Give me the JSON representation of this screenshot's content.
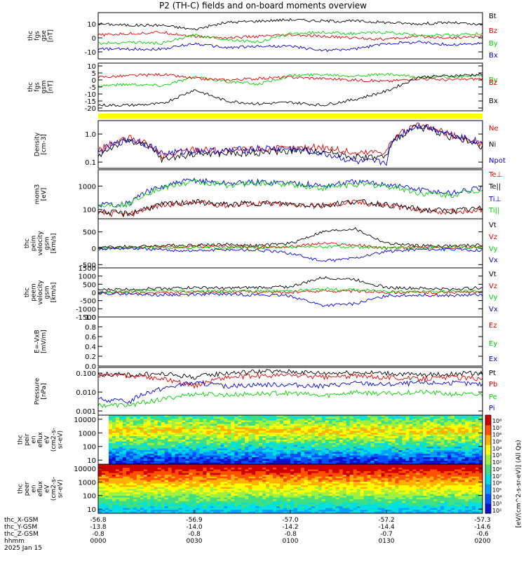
{
  "page": {
    "title": "P2 (TH-C) fields and on-board moments overview"
  },
  "colors": {
    "black": "#000000",
    "red": "#e00000",
    "green": "#00d000",
    "blue": "#0000e0",
    "yellow": "#ffff00"
  },
  "chart_data": [
    {
      "type": "line",
      "id": "fgs-gse",
      "ylabel_lines": [
        "thc",
        "fgs",
        "gse",
        "[nT]"
      ],
      "yticks": [
        "10",
        "0",
        "-10"
      ],
      "ytick_values": [
        10,
        0,
        -10
      ],
      "ylim": [
        -15,
        18
      ],
      "x": [
        "0000",
        "0010",
        "0020",
        "0030",
        "0040",
        "0050",
        "0100",
        "0110",
        "0120",
        "0130",
        "0140",
        "0150",
        "0200"
      ],
      "series": [
        {
          "name": "Bt",
          "color": "black",
          "values": [
            10,
            9,
            9,
            6,
            11,
            12,
            13,
            12,
            12,
            11,
            10,
            11,
            9
          ]
        },
        {
          "name": "Bz",
          "color": "red",
          "values": [
            2,
            3,
            4,
            1,
            0,
            1,
            2,
            1,
            0,
            -1,
            1,
            0,
            1
          ]
        },
        {
          "name": "By",
          "color": "green",
          "values": [
            -4,
            -3,
            -4,
            2,
            -1,
            -3,
            3,
            4,
            3,
            4,
            2,
            2,
            3
          ]
        },
        {
          "name": "Bx",
          "color": "blue",
          "values": [
            -8,
            -8,
            -8,
            -4,
            -7,
            -6,
            -6,
            -9,
            -8,
            -4,
            -3,
            -5,
            -4
          ]
        }
      ]
    },
    {
      "type": "line",
      "id": "fgs-gsm",
      "ylabel_lines": [
        "thc",
        "fgs",
        "gsm",
        "[nT]"
      ],
      "yticks": [
        "10",
        "5",
        "0",
        "-5",
        "-10",
        "-15",
        "-20"
      ],
      "ytick_values": [
        10,
        5,
        0,
        -5,
        -10,
        -15,
        -20
      ],
      "ylim": [
        -22,
        12
      ],
      "x": [
        "0000",
        "0010",
        "0020",
        "0030",
        "0040",
        "0050",
        "0100",
        "0110",
        "0120",
        "0130",
        "0140",
        "0150",
        "0200"
      ],
      "series": [
        {
          "name": "By",
          "color": "green",
          "values": [
            -4,
            -3,
            -4,
            2,
            -1,
            -3,
            3,
            4,
            3,
            4,
            2,
            2,
            3
          ]
        },
        {
          "name": "Bz",
          "color": "red",
          "values": [
            2,
            3,
            4,
            1,
            0,
            1,
            2,
            1,
            0,
            -1,
            1,
            0,
            1
          ]
        },
        {
          "name": "Bx",
          "color": "black",
          "values": [
            -18,
            -18,
            -17,
            -7,
            -15,
            -17,
            -16,
            -18,
            -14,
            -8,
            2,
            3,
            4
          ]
        }
      ]
    },
    {
      "type": "line",
      "id": "density",
      "ylabel_lines": [
        "Density",
        "[cm-3]"
      ],
      "yticks": [
        "1.0",
        "0.1"
      ],
      "ytick_values": [
        1.0,
        0.1
      ],
      "ylim": [
        0.06,
        3.0
      ],
      "yscale": "log",
      "x": [
        "0000",
        "0010",
        "0020",
        "0030",
        "0040",
        "0050",
        "0100",
        "0110",
        "0120",
        "0130",
        "0140",
        "0150",
        "0200"
      ],
      "series": [
        {
          "name": "Ne",
          "color": "red",
          "values": [
            0.25,
            0.7,
            0.15,
            0.3,
            0.25,
            0.3,
            0.3,
            0.35,
            0.2,
            0.25,
            2.0,
            0.9,
            0.4
          ]
        },
        {
          "name": "Ni",
          "color": "black",
          "values": [
            0.15,
            0.6,
            0.12,
            0.2,
            0.2,
            0.22,
            0.25,
            0.25,
            0.15,
            0.15,
            1.8,
            0.8,
            0.3
          ]
        },
        {
          "name": "Npot",
          "color": "blue",
          "values": [
            0.2,
            0.65,
            0.2,
            0.25,
            0.25,
            0.3,
            0.3,
            0.2,
            0.1,
            0.1,
            2.0,
            1.0,
            0.45
          ]
        }
      ]
    },
    {
      "type": "line",
      "id": "temperature",
      "ylabel_lines": [
        "mom3",
        "[eV]"
      ],
      "yticks": [
        "1000",
        "100"
      ],
      "ytick_values": [
        1000,
        100
      ],
      "ylim": [
        40,
        5000
      ],
      "yscale": "log",
      "x": [
        "0000",
        "0010",
        "0020",
        "0030",
        "0040",
        "0050",
        "0100",
        "0110",
        "0120",
        "0130",
        "0140",
        "0150",
        "0200"
      ],
      "series": [
        {
          "name": "Te⊥",
          "color": "red",
          "values": [
            70,
            60,
            150,
            200,
            150,
            180,
            160,
            140,
            200,
            150,
            90,
            80,
            100
          ]
        },
        {
          "name": "Te||",
          "color": "black",
          "values": [
            80,
            65,
            160,
            210,
            160,
            190,
            170,
            150,
            220,
            160,
            100,
            85,
            110
          ]
        },
        {
          "name": "Ti⊥",
          "color": "blue",
          "values": [
            160,
            180,
            900,
            1800,
            1300,
            1500,
            1400,
            1000,
            1500,
            1200,
            700,
            500,
            800
          ]
        },
        {
          "name": "Ti||",
          "color": "green",
          "values": [
            150,
            170,
            800,
            1500,
            1100,
            1300,
            1200,
            800,
            1200,
            1000,
            500,
            400,
            700
          ]
        }
      ]
    },
    {
      "type": "line",
      "id": "peim-velocity",
      "ylabel_lines": [
        "thc",
        "peim",
        "velocity",
        "gsm",
        "[km/s]"
      ],
      "yticks": [
        "500",
        "0",
        "-500"
      ],
      "ytick_values": [
        500,
        0,
        -500
      ],
      "ylim": [
        -600,
        900
      ],
      "x": [
        "0000",
        "0010",
        "0020",
        "0030",
        "0040",
        "0050",
        "0100",
        "0110",
        "0120",
        "0130",
        "0140",
        "0150",
        "0200"
      ],
      "series": [
        {
          "name": "Vt",
          "color": "black",
          "values": [
            30,
            50,
            80,
            100,
            120,
            80,
            150,
            500,
            600,
            150,
            80,
            70,
            100
          ]
        },
        {
          "name": "Vz",
          "color": "red",
          "values": [
            0,
            20,
            50,
            40,
            60,
            30,
            50,
            150,
            100,
            0,
            30,
            20,
            40
          ]
        },
        {
          "name": "Vy",
          "color": "green",
          "values": [
            -10,
            10,
            20,
            30,
            10,
            20,
            40,
            50,
            30,
            10,
            20,
            30,
            20
          ]
        },
        {
          "name": "Vx",
          "color": "blue",
          "values": [
            -20,
            0,
            -50,
            -80,
            -40,
            -60,
            -150,
            -400,
            -300,
            -100,
            -30,
            -40,
            -60
          ]
        }
      ]
    },
    {
      "type": "line",
      "id": "peem-velocity",
      "ylabel_lines": [
        "thc",
        "peem",
        "velocity",
        "gsm",
        "[km/s]"
      ],
      "yticks": [
        "1500",
        "1000",
        "500",
        "0",
        "-500",
        "-1000",
        "-1500"
      ],
      "ytick_values": [
        1500,
        1000,
        500,
        0,
        -500,
        -1000,
        -1500
      ],
      "ylim": [
        -1500,
        1500
      ],
      "x": [
        "0000",
        "0010",
        "0020",
        "0030",
        "0040",
        "0050",
        "0100",
        "0110",
        "0120",
        "0130",
        "0140",
        "0150",
        "0200"
      ],
      "series": [
        {
          "name": "Vt",
          "color": "black",
          "values": [
            150,
            200,
            250,
            300,
            250,
            300,
            350,
            900,
            800,
            300,
            250,
            200,
            300
          ]
        },
        {
          "name": "Vz",
          "color": "red",
          "values": [
            -20,
            0,
            -50,
            0,
            50,
            30,
            0,
            100,
            80,
            20,
            0,
            10,
            0
          ]
        },
        {
          "name": "Vy",
          "color": "green",
          "values": [
            20,
            50,
            100,
            80,
            60,
            80,
            100,
            200,
            150,
            80,
            50,
            60,
            80
          ]
        },
        {
          "name": "Vx",
          "color": "blue",
          "values": [
            -50,
            -100,
            -150,
            -120,
            -100,
            -150,
            -200,
            -800,
            -700,
            -200,
            -150,
            -200,
            -150
          ]
        }
      ]
    },
    {
      "type": "line",
      "id": "efield",
      "ylabel_lines": [
        "E=-VxB",
        "[mV/m]"
      ],
      "yticks": [
        "1.0",
        "0.8",
        "0.6",
        "0.4",
        "0.2",
        "0.0"
      ],
      "ytick_values": [
        1.0,
        0.8,
        0.6,
        0.4,
        0.2,
        0.0
      ],
      "ylim": [
        0.0,
        1.0
      ],
      "x": [],
      "series": [
        {
          "name": "Ez",
          "color": "red",
          "values": []
        },
        {
          "name": "Ey",
          "color": "green",
          "values": []
        },
        {
          "name": "Ex",
          "color": "blue",
          "values": []
        }
      ]
    },
    {
      "type": "line",
      "id": "pressure",
      "ylabel_lines": [
        "Pressure",
        "[nPa]"
      ],
      "yticks": [
        "0.100",
        "0.010",
        "0.001"
      ],
      "ytick_values": [
        0.1,
        0.01,
        0.001
      ],
      "ylim": [
        0.0006,
        0.2
      ],
      "yscale": "log",
      "x": [
        "0000",
        "0010",
        "0020",
        "0030",
        "0040",
        "0050",
        "0100",
        "0110",
        "0120",
        "0130",
        "0140",
        "0150",
        "0200"
      ],
      "series": [
        {
          "name": "Pt",
          "color": "black",
          "values": [
            0.09,
            0.08,
            0.09,
            0.06,
            0.1,
            0.12,
            0.12,
            0.1,
            0.11,
            0.1,
            0.08,
            0.09,
            0.1
          ]
        },
        {
          "name": "Pb",
          "color": "red",
          "values": [
            0.08,
            0.07,
            0.05,
            0.02,
            0.06,
            0.07,
            0.08,
            0.06,
            0.07,
            0.06,
            0.05,
            0.06,
            0.05
          ]
        },
        {
          "name": "Pe",
          "color": "green",
          "values": [
            0.002,
            0.002,
            0.004,
            0.008,
            0.007,
            0.008,
            0.009,
            0.006,
            0.01,
            0.008,
            0.01,
            0.008,
            0.007
          ]
        },
        {
          "name": "Pi",
          "color": "blue",
          "values": [
            0.004,
            0.003,
            0.015,
            0.03,
            0.02,
            0.025,
            0.025,
            0.02,
            0.03,
            0.025,
            0.03,
            0.03,
            0.025
          ]
        }
      ]
    },
    {
      "type": "heatmap",
      "id": "peir-spectrogram",
      "ylabel_lines": [
        "thc",
        "peir",
        "en",
        "eflux",
        "eV",
        "(cm2-s-",
        "sr-eV)"
      ],
      "yticks": [
        "10000",
        "1000",
        "100",
        "10"
      ],
      "ytick_values": [
        10000,
        1000,
        100,
        10
      ],
      "ylim": [
        5,
        20000
      ],
      "yscale": "log"
    },
    {
      "type": "heatmap",
      "id": "peer-spectrogram",
      "ylabel_lines": [
        "thc",
        "peer",
        "en",
        "eflux",
        "eV",
        "(cm2-s-",
        "sr-eV)"
      ],
      "yticks": [
        "10000",
        "1000",
        "100",
        "10"
      ],
      "ytick_values": [
        10000,
        1000,
        100,
        10
      ],
      "ylim": [
        5,
        20000
      ],
      "yscale": "log"
    }
  ],
  "colorbar": {
    "label": "[eV/(cm^2-s-sr-eV)] (All Qs)",
    "ticks": [
      "10⁸",
      "10⁷",
      "10⁶",
      "10⁵",
      "10⁴",
      "10³",
      "10²",
      "10⁸",
      "10⁷",
      "10⁶",
      "10⁵",
      "10⁴",
      "10³",
      "10²"
    ]
  },
  "x_axis": {
    "row_labels": [
      "thc_X-GSM",
      "thc_Y-GSM",
      "thc_Z-GSM",
      "hhmm",
      "2025 Jan 15"
    ],
    "ticks": [
      {
        "X": "-56.8",
        "Y": "-13.8",
        "Z": "-0.8",
        "hhmm": "0000"
      },
      {
        "X": "-56.9",
        "Y": "-14.0",
        "Z": "-0.8",
        "hhmm": "0030"
      },
      {
        "X": "-57.0",
        "Y": "-14.2",
        "Z": "-0.8",
        "hhmm": "0100"
      },
      {
        "X": "-57.2",
        "Y": "-14.4",
        "Z": "-0.7",
        "hhmm": "0130"
      },
      {
        "X": "-57.3",
        "Y": "-14.6",
        "Z": "-0.6",
        "hhmm": "0200"
      }
    ]
  }
}
